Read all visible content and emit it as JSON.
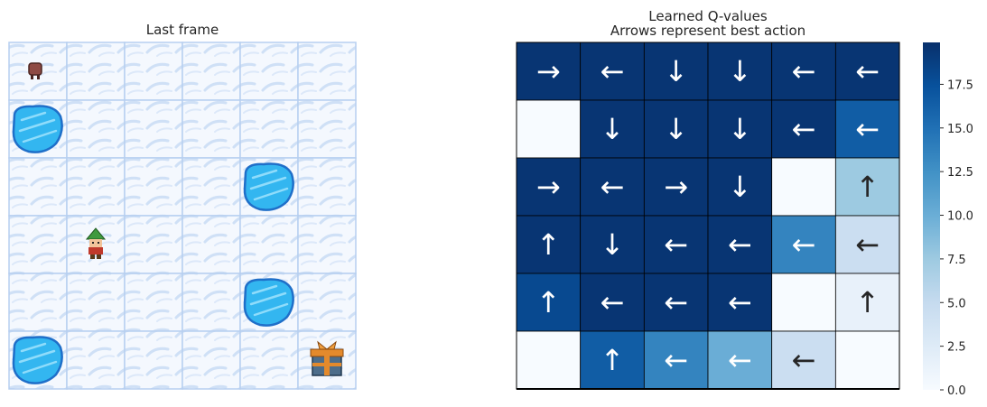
{
  "left_panel": {
    "title": "Last frame",
    "grid": {
      "rows": 6,
      "cols": 6,
      "cells": [
        [
          "start",
          "ice",
          "ice",
          "ice",
          "ice",
          "ice"
        ],
        [
          "hole",
          "ice",
          "ice",
          "ice",
          "ice",
          "ice"
        ],
        [
          "ice",
          "ice",
          "ice",
          "ice",
          "hole",
          "ice"
        ],
        [
          "ice",
          "elf",
          "ice",
          "ice",
          "ice",
          "ice"
        ],
        [
          "ice",
          "ice",
          "ice",
          "ice",
          "hole",
          "ice"
        ],
        [
          "hole",
          "ice",
          "ice",
          "ice",
          "ice",
          "goal"
        ]
      ]
    },
    "icons": {
      "ice": "frozen-ice-tile",
      "hole": "ice-hole-icon",
      "elf": "elf-player-icon",
      "start": "start-stool-icon",
      "goal": "gift-goal-icon"
    }
  },
  "chart_data": {
    "type": "heatmap",
    "title": "Learned Q-values",
    "subtitle": "Arrows represent best action",
    "rows": 6,
    "cols": 6,
    "values": [
      [
        19.5,
        19.5,
        19.5,
        19.5,
        19.5,
        19.5
      ],
      [
        0.0,
        19.5,
        19.5,
        19.5,
        19.5,
        16.5
      ],
      [
        19.5,
        19.5,
        19.5,
        19.5,
        0.0,
        7.5
      ],
      [
        19.5,
        19.5,
        19.5,
        19.5,
        13.5,
        4.5
      ],
      [
        18.0,
        19.5,
        19.5,
        19.5,
        0.0,
        1.5
      ],
      [
        0.0,
        16.5,
        13.5,
        10.0,
        4.5,
        0.0
      ]
    ],
    "arrows": [
      [
        "→",
        "←",
        "↓",
        "↓",
        "←",
        "←"
      ],
      [
        "",
        "↓",
        "↓",
        "↓",
        "←",
        "←"
      ],
      [
        "→",
        "←",
        "→",
        "↓",
        "",
        "↑"
      ],
      [
        "↑",
        "↓",
        "←",
        "←",
        "←",
        "←"
      ],
      [
        "↑",
        "←",
        "←",
        "←",
        "",
        "↑"
      ],
      [
        "",
        "↑",
        "←",
        "←",
        "←",
        ""
      ]
    ],
    "vmin": 0.0,
    "vmax": 19.9,
    "colormap": "Blues",
    "colorbar_ticks": [
      "0.0",
      "2.5",
      "5.0",
      "7.5",
      "10.0",
      "12.5",
      "15.0",
      "17.5"
    ],
    "colorbar_tick_values": [
      0.0,
      2.5,
      5.0,
      7.5,
      10.0,
      12.5,
      15.0,
      17.5
    ],
    "colors": {
      "blues_stops": [
        "#f7fbff",
        "#deebf7",
        "#c6dbef",
        "#9ecae1",
        "#6baed6",
        "#4292c6",
        "#2171b5",
        "#08519c",
        "#08306b"
      ],
      "cell_border": "#000000",
      "arrow_light": "#ffffff",
      "arrow_dark": "#262626"
    }
  }
}
